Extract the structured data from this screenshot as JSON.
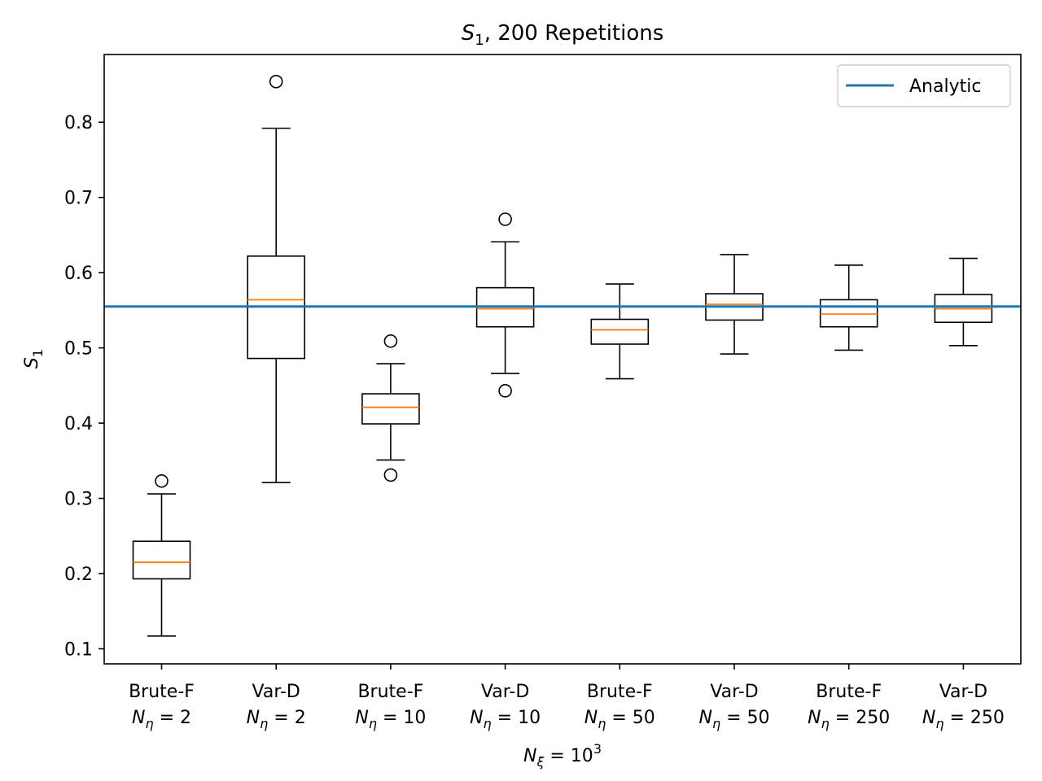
{
  "chart_data": {
    "type": "box",
    "title": {
      "main_italic": "S",
      "main_sub": "1",
      "rest": ", 200 Repetitions"
    },
    "ylabel": {
      "main_italic": "S",
      "main_sub": "1"
    },
    "xlabel": {
      "main_italic": "N",
      "sub": "ξ",
      "eq": " = 10",
      "sup": "3"
    },
    "ylim": [
      0.08,
      0.89
    ],
    "yticks": [
      0.1,
      0.2,
      0.3,
      0.4,
      0.5,
      0.6,
      0.7,
      0.8
    ],
    "ytick_labels": [
      "0.1",
      "0.2",
      "0.3",
      "0.4",
      "0.5",
      "0.6",
      "0.7",
      "0.8"
    ],
    "analytic_value": 0.555,
    "legend": {
      "label": "Analytic",
      "position": "upper right"
    },
    "colors": {
      "analytic": "#1f77b4",
      "median": "#ff7f0e",
      "box": "#000000"
    },
    "categories": [
      {
        "line1": "Brute-F",
        "n_eta": "2"
      },
      {
        "line1": "Var-D",
        "n_eta": "2"
      },
      {
        "line1": "Brute-F",
        "n_eta": "10"
      },
      {
        "line1": "Var-D",
        "n_eta": "10"
      },
      {
        "line1": "Brute-F",
        "n_eta": "50"
      },
      {
        "line1": "Var-D",
        "n_eta": "50"
      },
      {
        "line1": "Brute-F",
        "n_eta": "250"
      },
      {
        "line1": "Var-D",
        "n_eta": "250"
      }
    ],
    "boxes": [
      {
        "whislo": 0.117,
        "q1": 0.193,
        "med": 0.215,
        "q3": 0.243,
        "whishi": 0.306,
        "fliers": [
          0.323
        ]
      },
      {
        "whislo": 0.321,
        "q1": 0.486,
        "med": 0.564,
        "q3": 0.622,
        "whishi": 0.792,
        "fliers": [
          0.854
        ]
      },
      {
        "whislo": 0.351,
        "q1": 0.399,
        "med": 0.421,
        "q3": 0.439,
        "whishi": 0.479,
        "fliers": [
          0.509,
          0.331
        ]
      },
      {
        "whislo": 0.466,
        "q1": 0.528,
        "med": 0.552,
        "q3": 0.58,
        "whishi": 0.641,
        "fliers": [
          0.671,
          0.443
        ]
      },
      {
        "whislo": 0.459,
        "q1": 0.505,
        "med": 0.524,
        "q3": 0.538,
        "whishi": 0.585,
        "fliers": []
      },
      {
        "whislo": 0.492,
        "q1": 0.537,
        "med": 0.558,
        "q3": 0.572,
        "whishi": 0.624,
        "fliers": []
      },
      {
        "whislo": 0.497,
        "q1": 0.528,
        "med": 0.545,
        "q3": 0.564,
        "whishi": 0.61,
        "fliers": []
      },
      {
        "whislo": 0.503,
        "q1": 0.534,
        "med": 0.552,
        "q3": 0.571,
        "whishi": 0.619,
        "fliers": []
      }
    ]
  }
}
